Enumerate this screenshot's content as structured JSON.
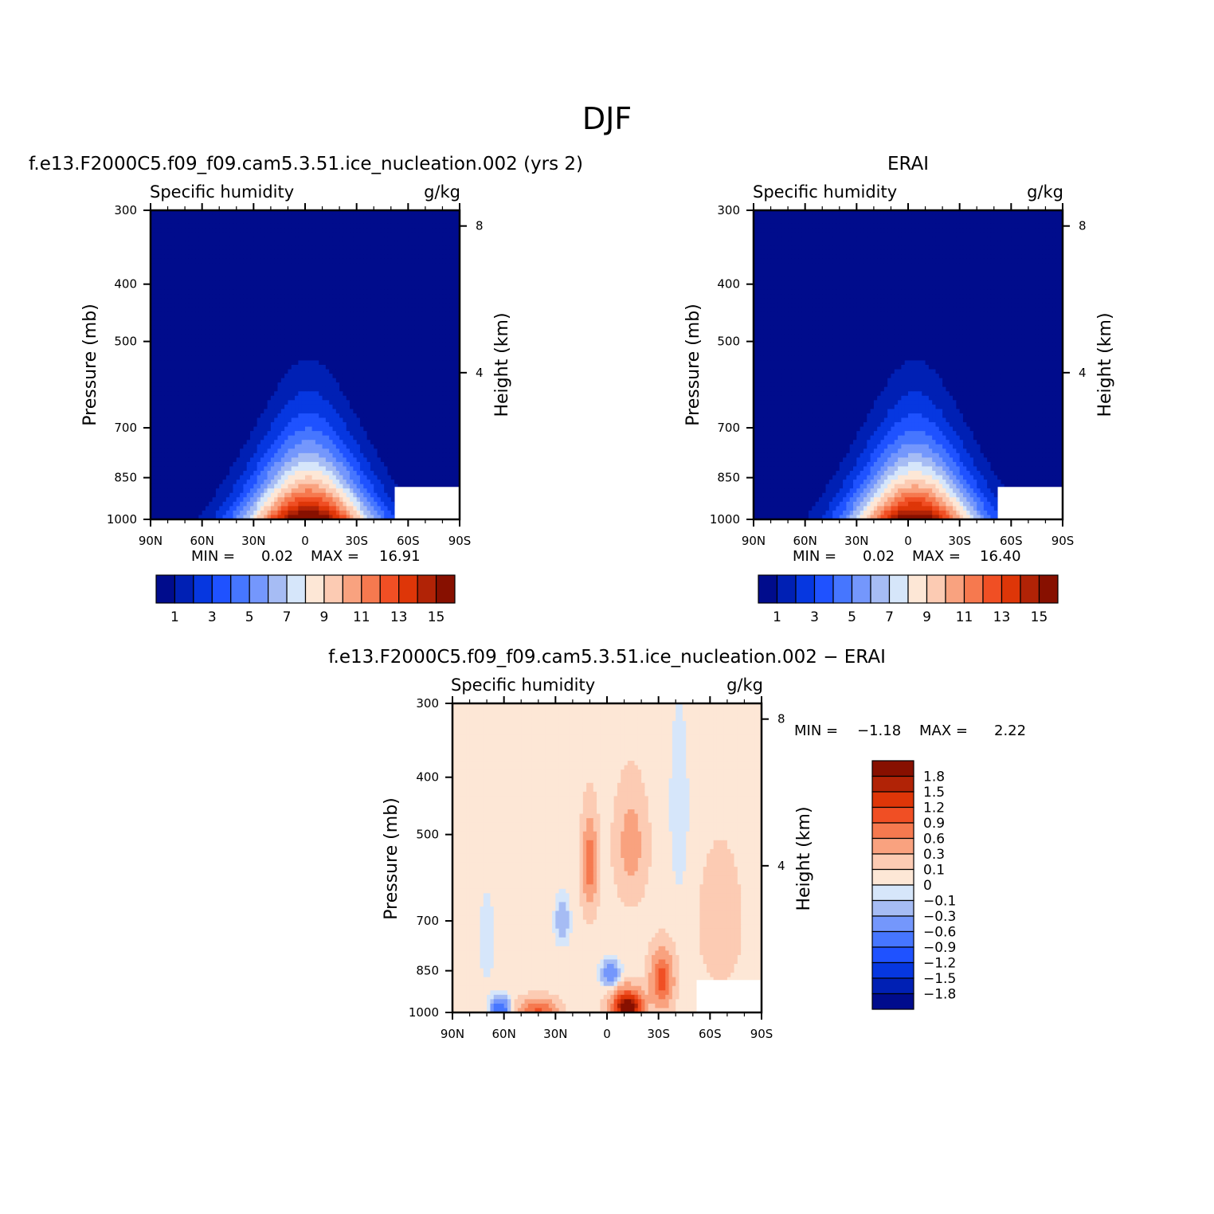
{
  "figure_title": "DJF",
  "colors": {
    "seq": [
      "#000c8c",
      "#0020b4",
      "#0637e0",
      "#1f52ff",
      "#4676ff",
      "#7497fc",
      "#a6bcf4",
      "#d6e6fa",
      "#fde7d6",
      "#fccbb3",
      "#f9a27f",
      "#f6794f",
      "#f04f24",
      "#de3608",
      "#b12306",
      "#871000"
    ],
    "div": [
      "#000c8c",
      "#0020b4",
      "#0637e0",
      "#1f52ff",
      "#4676ff",
      "#7497fc",
      "#a6bcf4",
      "#d6e6fa",
      "#fde7d6",
      "#fccbb3",
      "#f9a27f",
      "#f6794f",
      "#f04f24",
      "#de3608",
      "#b12306",
      "#871000"
    ]
  },
  "chart_data": [
    {
      "type": "heatmap",
      "id": "model",
      "header": "f.e13.F2000C5.f09_f09.cam5.3.51.ice_nucleation.002 (yrs 2)",
      "left_label": "Specific humidity",
      "right_label": "g/kg",
      "ylabel": "Pressure (mb)",
      "y2label": "Height (km)",
      "x_ticks": [
        "90N",
        "60N",
        "30N",
        "0",
        "30S",
        "60S",
        "90S"
      ],
      "y_ticks": [
        "300",
        "400",
        "500",
        "700",
        "850",
        "1000"
      ],
      "y2_ticks": [
        "8",
        "4"
      ],
      "stats": {
        "min_label": "MIN =",
        "min": "0.02",
        "max_label": "MAX =",
        "max": "16.91"
      },
      "levels": [
        1,
        2,
        3,
        4,
        5,
        6,
        7,
        8,
        9,
        10,
        11,
        12,
        13,
        14,
        15
      ],
      "colorbar_labels": [
        "1",
        "3",
        "5",
        "7",
        "9",
        "11",
        "13",
        "15"
      ],
      "field": {
        "peak": 16.91,
        "center_lat": -2,
        "width_surface": 38,
        "width_top": 12,
        "floor": 0.02
      }
    },
    {
      "type": "heatmap",
      "id": "obs",
      "header": "ERAI",
      "left_label": "Specific humidity",
      "right_label": "g/kg",
      "ylabel": "Pressure (mb)",
      "y2label": "Height (km)",
      "x_ticks": [
        "90N",
        "60N",
        "30N",
        "0",
        "30S",
        "60S",
        "90S"
      ],
      "y_ticks": [
        "300",
        "400",
        "500",
        "700",
        "850",
        "1000"
      ],
      "y2_ticks": [
        "8",
        "4"
      ],
      "stats": {
        "min_label": "MIN =",
        "min": "0.02",
        "max_label": "MAX =",
        "max": "16.40"
      },
      "levels": [
        1,
        2,
        3,
        4,
        5,
        6,
        7,
        8,
        9,
        10,
        11,
        12,
        13,
        14,
        15
      ],
      "colorbar_labels": [
        "1",
        "3",
        "5",
        "7",
        "9",
        "11",
        "13",
        "15"
      ],
      "field": {
        "peak": 16.4,
        "center_lat": -4,
        "width_surface": 38,
        "width_top": 12,
        "floor": 0.02
      }
    },
    {
      "type": "heatmap",
      "id": "diff",
      "header": "f.e13.F2000C5.f09_f09.cam5.3.51.ice_nucleation.002 − ERAI",
      "left_label": "Specific humidity",
      "right_label": "g/kg",
      "ylabel": "Pressure (mb)",
      "y2label": "Height (km)",
      "x_ticks": [
        "90N",
        "60N",
        "30N",
        "0",
        "30S",
        "60S",
        "90S"
      ],
      "y_ticks": [
        "300",
        "400",
        "500",
        "700",
        "850",
        "1000"
      ],
      "y2_ticks": [
        "8",
        "4"
      ],
      "stats": {
        "min_label": "MIN =",
        "min": "−1.18",
        "max_label": "MAX =",
        "max": "2.22"
      },
      "levels": [
        -1.8,
        -1.5,
        -1.2,
        -0.9,
        -0.6,
        -0.3,
        -0.1,
        0,
        0.1,
        0.3,
        0.6,
        0.9,
        1.2,
        1.5,
        1.8
      ],
      "colorbar_labels": [
        "1.8",
        "1.5",
        "1.2",
        "0.9",
        "0.6",
        "0.3",
        "0.1",
        "0",
        "−0.1",
        "−0.3",
        "−0.6",
        "−0.9",
        "−1.2",
        "−1.5",
        "−1.8"
      ],
      "field": {
        "blobs": [
          {
            "lat": -12,
            "p": 980,
            "slat": 8,
            "sp": 60,
            "amp": 2.2
          },
          {
            "lat": -32,
            "p": 880,
            "slat": 6,
            "sp": 90,
            "amp": 1.0
          },
          {
            "lat": 10,
            "p": 560,
            "slat": 4,
            "sp": 90,
            "amp": 0.8
          },
          {
            "lat": -14,
            "p": 520,
            "slat": 8,
            "sp": 100,
            "amp": 0.4
          },
          {
            "lat": 40,
            "p": 990,
            "slat": 10,
            "sp": 40,
            "amp": 0.9
          },
          {
            "lat": 62,
            "p": 985,
            "slat": 5,
            "sp": 40,
            "amp": -1.0
          },
          {
            "lat": -2,
            "p": 860,
            "slat": 5,
            "sp": 40,
            "amp": -0.6
          },
          {
            "lat": 26,
            "p": 700,
            "slat": 4,
            "sp": 60,
            "amp": -0.3
          },
          {
            "lat": -42,
            "p": 450,
            "slat": 5,
            "sp": 150,
            "amp": -0.15
          },
          {
            "lat": 70,
            "p": 750,
            "slat": 5,
            "sp": 150,
            "amp": -0.1
          },
          {
            "lat": -66,
            "p": 700,
            "slat": 10,
            "sp": 150,
            "amp": 0.25
          }
        ],
        "background": 0.05
      }
    }
  ]
}
